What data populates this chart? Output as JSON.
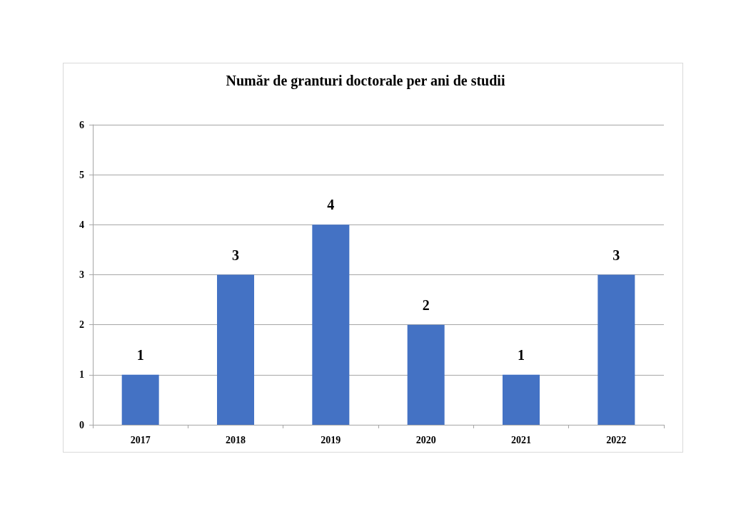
{
  "chart_data": {
    "type": "bar",
    "title": "Număr de granturi doctorale per ani de studii",
    "categories": [
      "2017",
      "2018",
      "2019",
      "2020",
      "2021",
      "2022"
    ],
    "values": [
      1,
      3,
      4,
      2,
      1,
      3
    ],
    "color": "#4472c4",
    "ylim": [
      0,
      6
    ],
    "yticks": [
      0,
      1,
      2,
      3,
      4,
      5,
      6
    ],
    "grid": "y",
    "data_labels": true
  }
}
